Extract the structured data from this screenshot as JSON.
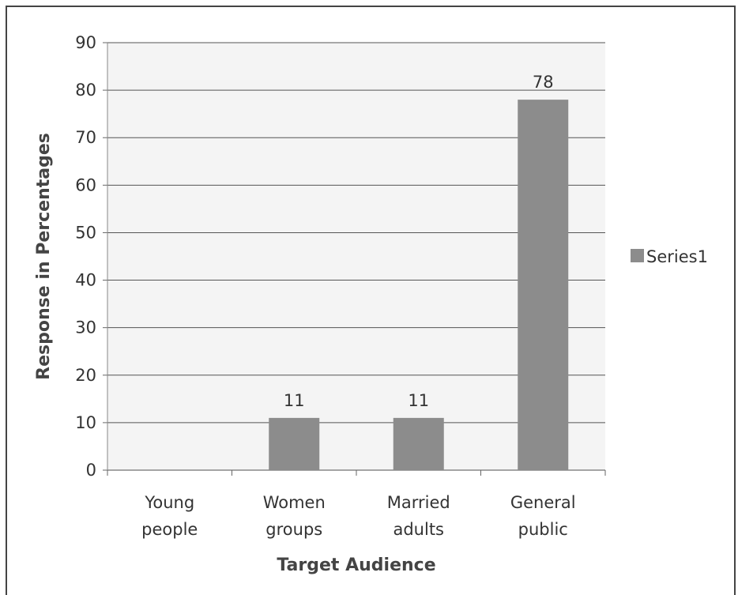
{
  "chart_data": {
    "type": "bar",
    "categories": [
      [
        "Young",
        "people"
      ],
      [
        "Women",
        "groups"
      ],
      [
        "Married",
        "adults"
      ],
      [
        "General",
        "public"
      ]
    ],
    "series": [
      {
        "name": "Series1",
        "values": [
          0,
          11,
          11,
          78
        ],
        "data_labels": [
          "",
          "11",
          "11",
          "78"
        ]
      }
    ],
    "xlabel": "Target Audience",
    "ylabel": "Response in Percentages",
    "ylim": [
      0,
      90
    ],
    "yticks": [
      0,
      10,
      20,
      30,
      40,
      50,
      60,
      70,
      80,
      90
    ],
    "grid": true,
    "legend": "right",
    "colors": {
      "bar": "#8c8c8c",
      "grid": "#555555",
      "plot_bg": "#f4f4f4"
    }
  }
}
